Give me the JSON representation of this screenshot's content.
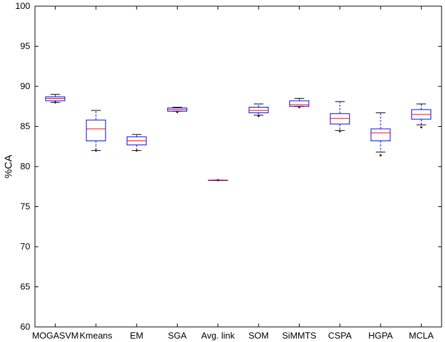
{
  "chart_data": {
    "type": "boxplot",
    "ylabel": "%CA",
    "xlabel": "",
    "title": "",
    "ylim": [
      60,
      100
    ],
    "yticks": [
      60,
      65,
      70,
      75,
      80,
      85,
      90,
      95,
      100
    ],
    "grid": false,
    "colors": {
      "box": "#0000ff",
      "median": "#ff0000",
      "outlier": "#8b0000",
      "axis": "#000000"
    },
    "categories": [
      "MOGASVM",
      "Kmeans",
      "EM",
      "SGA",
      "Avg. link",
      "SOM",
      "SiMMTS",
      "CSPA",
      "HGPA",
      "MCLA"
    ],
    "boxes": [
      {
        "label": "MOGASVM",
        "whisker_low": 88.0,
        "q1": 88.2,
        "median": 88.5,
        "q3": 88.7,
        "whisker_high": 89.0,
        "outliers": [
          88.0
        ]
      },
      {
        "label": "Kmeans",
        "whisker_low": 82.0,
        "q1": 83.2,
        "median": 84.7,
        "q3": 85.8,
        "whisker_high": 87.0,
        "outliers": [
          82.0
        ]
      },
      {
        "label": "EM",
        "whisker_low": 82.0,
        "q1": 82.7,
        "median": 83.2,
        "q3": 83.7,
        "whisker_high": 84.0,
        "outliers": [
          82.0
        ]
      },
      {
        "label": "SGA",
        "whisker_low": 86.9,
        "q1": 86.9,
        "median": 87.1,
        "q3": 87.3,
        "whisker_high": 87.4,
        "outliers": [
          86.8
        ]
      },
      {
        "label": "Avg. link",
        "whisker_low": 78.3,
        "q1": 78.3,
        "median": 78.3,
        "q3": 78.3,
        "whisker_high": 78.3,
        "outliers": [
          78.3
        ]
      },
      {
        "label": "SOM",
        "whisker_low": 86.4,
        "q1": 86.7,
        "median": 87.0,
        "q3": 87.4,
        "whisker_high": 87.8,
        "outliers": [
          86.3
        ]
      },
      {
        "label": "SiMMTS",
        "whisker_low": 87.5,
        "q1": 87.5,
        "median": 87.7,
        "q3": 88.2,
        "whisker_high": 88.5,
        "outliers": [
          87.4
        ]
      },
      {
        "label": "CSPA",
        "whisker_low": 84.5,
        "q1": 85.3,
        "median": 86.0,
        "q3": 86.6,
        "whisker_high": 88.1,
        "outliers": [
          84.4
        ]
      },
      {
        "label": "HGPA",
        "whisker_low": 81.8,
        "q1": 83.2,
        "median": 84.2,
        "q3": 84.7,
        "whisker_high": 86.7,
        "outliers": [
          81.4
        ]
      },
      {
        "label": "MCLA",
        "whisker_low": 85.2,
        "q1": 85.9,
        "median": 86.5,
        "q3": 87.1,
        "whisker_high": 87.8,
        "outliers": [
          84.9
        ]
      }
    ]
  }
}
